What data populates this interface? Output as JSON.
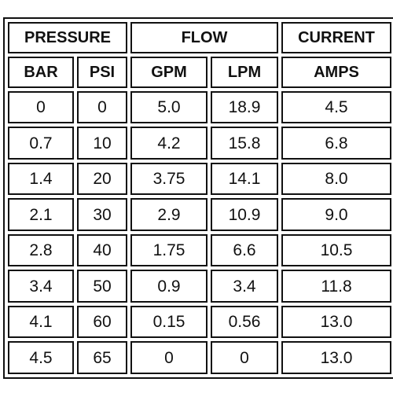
{
  "table": {
    "group_headers": [
      {
        "label": "PRESSURE"
      },
      {
        "label": "FLOW"
      },
      {
        "label": "CURRENT"
      }
    ],
    "column_headers": [
      {
        "label": "BAR"
      },
      {
        "label": "PSI"
      },
      {
        "label": "GPM"
      },
      {
        "label": "LPM"
      },
      {
        "label": "AMPS"
      }
    ],
    "rows": [
      [
        "0",
        "0",
        "5.0",
        "18.9",
        "4.5"
      ],
      [
        "0.7",
        "10",
        "4.2",
        "15.8",
        "6.8"
      ],
      [
        "1.4",
        "20",
        "3.75",
        "14.1",
        "8.0"
      ],
      [
        "2.1",
        "30",
        "2.9",
        "10.9",
        "9.0"
      ],
      [
        "2.8",
        "40",
        "1.75",
        "6.6",
        "10.5"
      ],
      [
        "3.4",
        "50",
        "0.9",
        "3.4",
        "11.8"
      ],
      [
        "4.1",
        "60",
        "0.15",
        "0.56",
        "13.0"
      ],
      [
        "4.5",
        "65",
        "0",
        "0",
        "13.0"
      ]
    ]
  }
}
